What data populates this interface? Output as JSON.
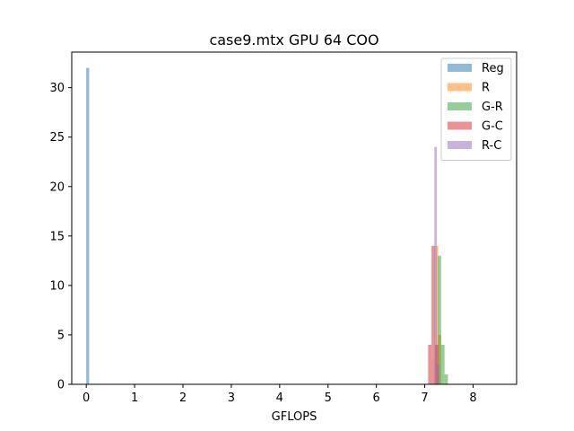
{
  "chart_data": {
    "type": "bar",
    "title": "case9.mtx GPU 64 COO",
    "xlabel": "GFLOPS",
    "ylabel": "",
    "xlim": [
      -0.3,
      8.9
    ],
    "ylim": [
      0,
      33.6
    ],
    "xticks": [
      0,
      1,
      2,
      3,
      4,
      5,
      6,
      7,
      8
    ],
    "yticks": [
      0,
      5,
      10,
      15,
      20,
      25,
      30
    ],
    "legend_position": "top-right",
    "series": [
      {
        "name": "Reg",
        "color": "#1f77b4",
        "opacity": 0.5,
        "bins": [
          {
            "x0": 0.0,
            "x1": 0.06,
            "count": 32
          }
        ]
      },
      {
        "name": "R",
        "color": "#ff7f0e",
        "opacity": 0.5,
        "bins": [
          {
            "x0": 7.22,
            "x1": 7.28,
            "count": 14
          },
          {
            "x0": 7.28,
            "x1": 7.34,
            "count": 5
          }
        ]
      },
      {
        "name": "G-R",
        "color": "#2ca02c",
        "opacity": 0.5,
        "bins": [
          {
            "x0": 7.27,
            "x1": 7.34,
            "count": 13
          },
          {
            "x0": 7.34,
            "x1": 7.41,
            "count": 4
          },
          {
            "x0": 7.41,
            "x1": 7.48,
            "count": 1
          }
        ]
      },
      {
        "name": "G-C",
        "color": "#d62728",
        "opacity": 0.5,
        "bins": [
          {
            "x0": 7.07,
            "x1": 7.14,
            "count": 4
          },
          {
            "x0": 7.14,
            "x1": 7.21,
            "count": 14
          },
          {
            "x0": 7.21,
            "x1": 7.28,
            "count": 4
          }
        ]
      },
      {
        "name": "R-C",
        "color": "#9467bd",
        "opacity": 0.5,
        "bins": [
          {
            "x0": 7.2,
            "x1": 7.25,
            "count": 24
          },
          {
            "x0": 7.25,
            "x1": 7.3,
            "count": 2
          }
        ]
      }
    ]
  }
}
